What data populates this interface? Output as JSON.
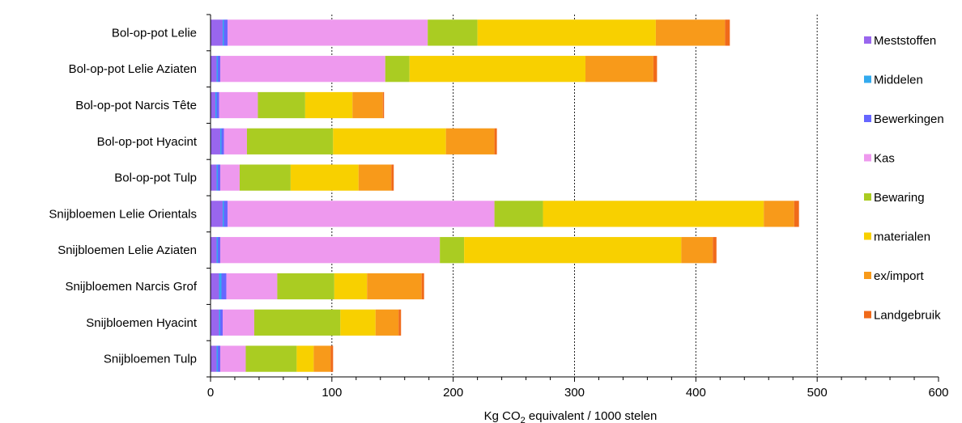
{
  "chart_data": {
    "type": "bar",
    "orientation": "horizontal",
    "stacked": true,
    "categories": [
      "Bol-op-pot Lelie",
      "Bol-op-pot Lelie Aziaten",
      "Bol-op-pot Narcis Tête",
      "Bol-op-pot Hyacint",
      "Bol-op-pot Tulp",
      "Snijbloemen Lelie Orientals",
      "Snijbloemen Lelie Aziaten",
      "Snijbloemen Narcis Grof",
      "Snijbloemen Hyacint",
      "Snijbloemen Tulp"
    ],
    "series": [
      {
        "name": "Meststoffen",
        "color": "#9966ee",
        "values": [
          10,
          5,
          4,
          8,
          5,
          10,
          5,
          7,
          7,
          5
        ]
      },
      {
        "name": "Middelen",
        "color": "#33aaee",
        "values": [
          1,
          1,
          1,
          1,
          1,
          1,
          1,
          2,
          1,
          1
        ]
      },
      {
        "name": "Bewerkingen",
        "color": "#6666ff",
        "values": [
          3,
          2,
          2,
          2,
          2,
          3,
          2,
          4,
          2,
          2
        ]
      },
      {
        "name": "Kas",
        "color": "#ee99ee",
        "values": [
          165,
          136,
          32,
          19,
          16,
          220,
          181,
          42,
          26,
          21
        ]
      },
      {
        "name": "Bewaring",
        "color": "#aacc22",
        "values": [
          41,
          20,
          39,
          71,
          42,
          40,
          20,
          47,
          71,
          42
        ]
      },
      {
        "name": "materialen",
        "color": "#f8d000",
        "values": [
          147,
          145,
          39,
          93,
          56,
          182,
          179,
          27,
          29,
          14
        ]
      },
      {
        "name": "ex/import",
        "color": "#f89a1a",
        "values": [
          57,
          56,
          25,
          40,
          27,
          25,
          26,
          45,
          19,
          14
        ]
      },
      {
        "name": "Landgebruik",
        "color": "#f06a1a",
        "values": [
          4,
          3,
          1,
          2,
          2,
          4,
          3,
          2,
          2,
          2
        ]
      }
    ],
    "xlim": [
      0,
      600
    ],
    "xticks": [
      0,
      100,
      200,
      300,
      400,
      500,
      600
    ],
    "grid": "vertical dashed",
    "legend_position": "right",
    "xlabel": {
      "prefix": "Kg CO",
      "subscript": "2",
      "suffix": " equivalent / 1000 stelen"
    },
    "ylabel": "",
    "title": ""
  }
}
